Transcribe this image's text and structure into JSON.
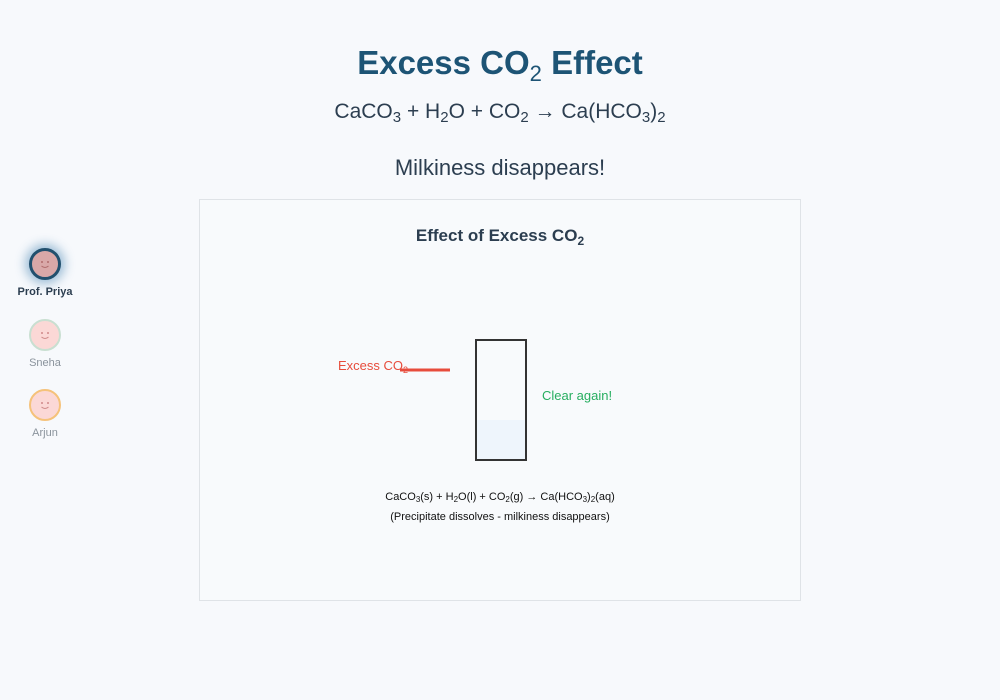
{
  "header": {
    "title_prefix": "Excess CO",
    "title_sub": "2",
    "title_suffix": " Effect",
    "equation": {
      "p1": "CaCO",
      "s1": "3",
      "p2": " + H",
      "s2": "2",
      "p3": "O + CO",
      "s3": "2",
      "p4": " → Ca(HCO",
      "s4": "3",
      "p5": ")",
      "s5": "2"
    },
    "subtitle": "Milkiness disappears!"
  },
  "participants": [
    {
      "name": "Prof. Priya",
      "active": true
    },
    {
      "name": "Sneha",
      "active": false
    },
    {
      "name": "Arjun",
      "active": false
    }
  ],
  "diagram": {
    "title_prefix": "Effect of Excess CO",
    "title_sub": "2",
    "gas_label_prefix": "Excess CO",
    "gas_label_sub": "2",
    "result_label": "Clear again!",
    "equation": {
      "p1": "CaCO",
      "s1": "3",
      "p2": "(s) + H",
      "s2": "2",
      "p3": "O(l) + CO",
      "s3": "2",
      "p4": "(g) → Ca(HCO",
      "s4": "3",
      "p5": ")",
      "s5": "2",
      "p6": "(aq)"
    },
    "note": "(Precipitate dissolves - milkiness disappears)",
    "colors": {
      "gas": "#e74c3c",
      "result": "#27ae60",
      "liquid": "#eef5fc",
      "tube": "#333333"
    }
  }
}
